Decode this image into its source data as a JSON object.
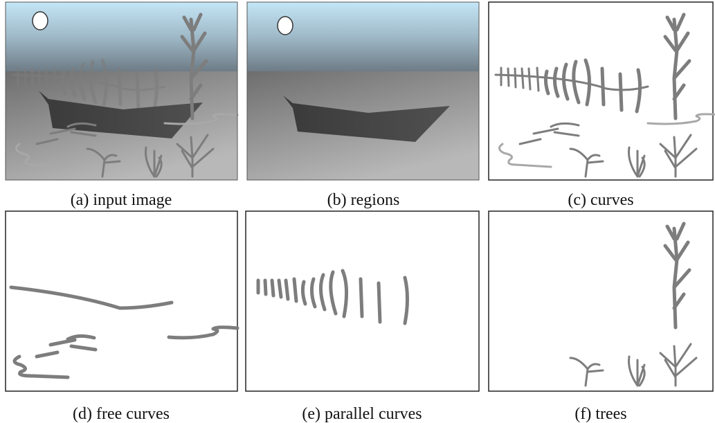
{
  "figure": {
    "panels": [
      {
        "caption": "(a) input image"
      },
      {
        "caption": "(b) regions"
      },
      {
        "caption": "(c) curves"
      },
      {
        "caption": "(d) free curves"
      },
      {
        "caption": "(e) parallel curves"
      },
      {
        "caption": "(f) trees"
      }
    ]
  }
}
